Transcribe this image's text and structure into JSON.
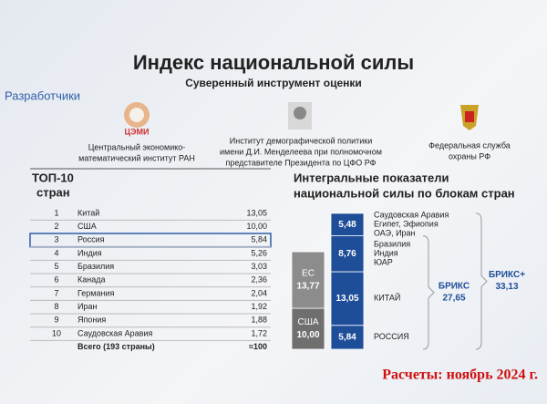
{
  "header": {
    "title": "Индекс национальной силы",
    "subtitle": "Суверенный инструмент оценки",
    "developers_label": "Разработчики"
  },
  "developers": [
    {
      "logo_text": "ЦЭМИ",
      "lines": [
        "Центральный экономико-",
        "математический институт РАН"
      ]
    },
    {
      "lines": [
        "Институт демографической политики",
        "имени Д.И. Менделеева при полномочном",
        "представителе Президента по ЦФО РФ"
      ]
    },
    {
      "lines": [
        "Федеральная служба",
        "охраны РФ"
      ]
    }
  ],
  "table": {
    "title": [
      "ТОП-10",
      "стран"
    ],
    "rows": [
      [
        "1",
        "Китай",
        "13,05"
      ],
      [
        "2",
        "США",
        "10,00"
      ],
      [
        "3",
        "Россия",
        "5,84"
      ],
      [
        "4",
        "Индия",
        "5,26"
      ],
      [
        "5",
        "Бразилия",
        "3,03"
      ],
      [
        "6",
        "Канада",
        "2,36"
      ],
      [
        "7",
        "Германия",
        "2,04"
      ],
      [
        "8",
        "Иран",
        "1,92"
      ],
      [
        "9",
        "Япония",
        "1,88"
      ],
      [
        "10",
        "Саудовская Аравия",
        "1,72"
      ]
    ],
    "total": {
      "label": "Всего (193 страны)",
      "value": "≈100"
    }
  },
  "chart_data": {
    "type": "stacked-bar",
    "title": [
      "Интегральные показатели",
      "национальной силы по блокам стран"
    ],
    "stacks": [
      {
        "names": [
          "США",
          "ЕС"
        ],
        "values": [
          10.0,
          13.77
        ],
        "value_labels": [
          "10,00",
          "13,77"
        ],
        "colors": [
          "#6f6f6f",
          "#8c8c8c"
        ],
        "label_inside": true
      },
      {
        "names": [
          [
            "РОССИЯ"
          ],
          [
            "КИТАЙ"
          ],
          [
            "Бразилия",
            "Индия",
            "ЮАР"
          ],
          [
            "Саудовская Аравия",
            "Египет, Эфиопия",
            "ОАЭ, Иран"
          ]
        ],
        "values": [
          5.84,
          13.05,
          8.76,
          5.48
        ],
        "value_labels": [
          "5,84",
          "13,05",
          "8,76",
          "5,48"
        ],
        "colors": [
          "#1f4e99",
          "#1f4e99",
          "#1f4e99",
          "#1f4e99"
        ],
        "label_inside": false
      }
    ],
    "annotations": [
      {
        "label": "БРИКС",
        "value": 27.65,
        "value_label": "27,65",
        "segments": 3
      },
      {
        "label": "БРИКС+",
        "value": 33.13,
        "value_label": "33,13",
        "segments": 4
      }
    ]
  },
  "footer": "Расчеты: ноябрь 2024 г."
}
